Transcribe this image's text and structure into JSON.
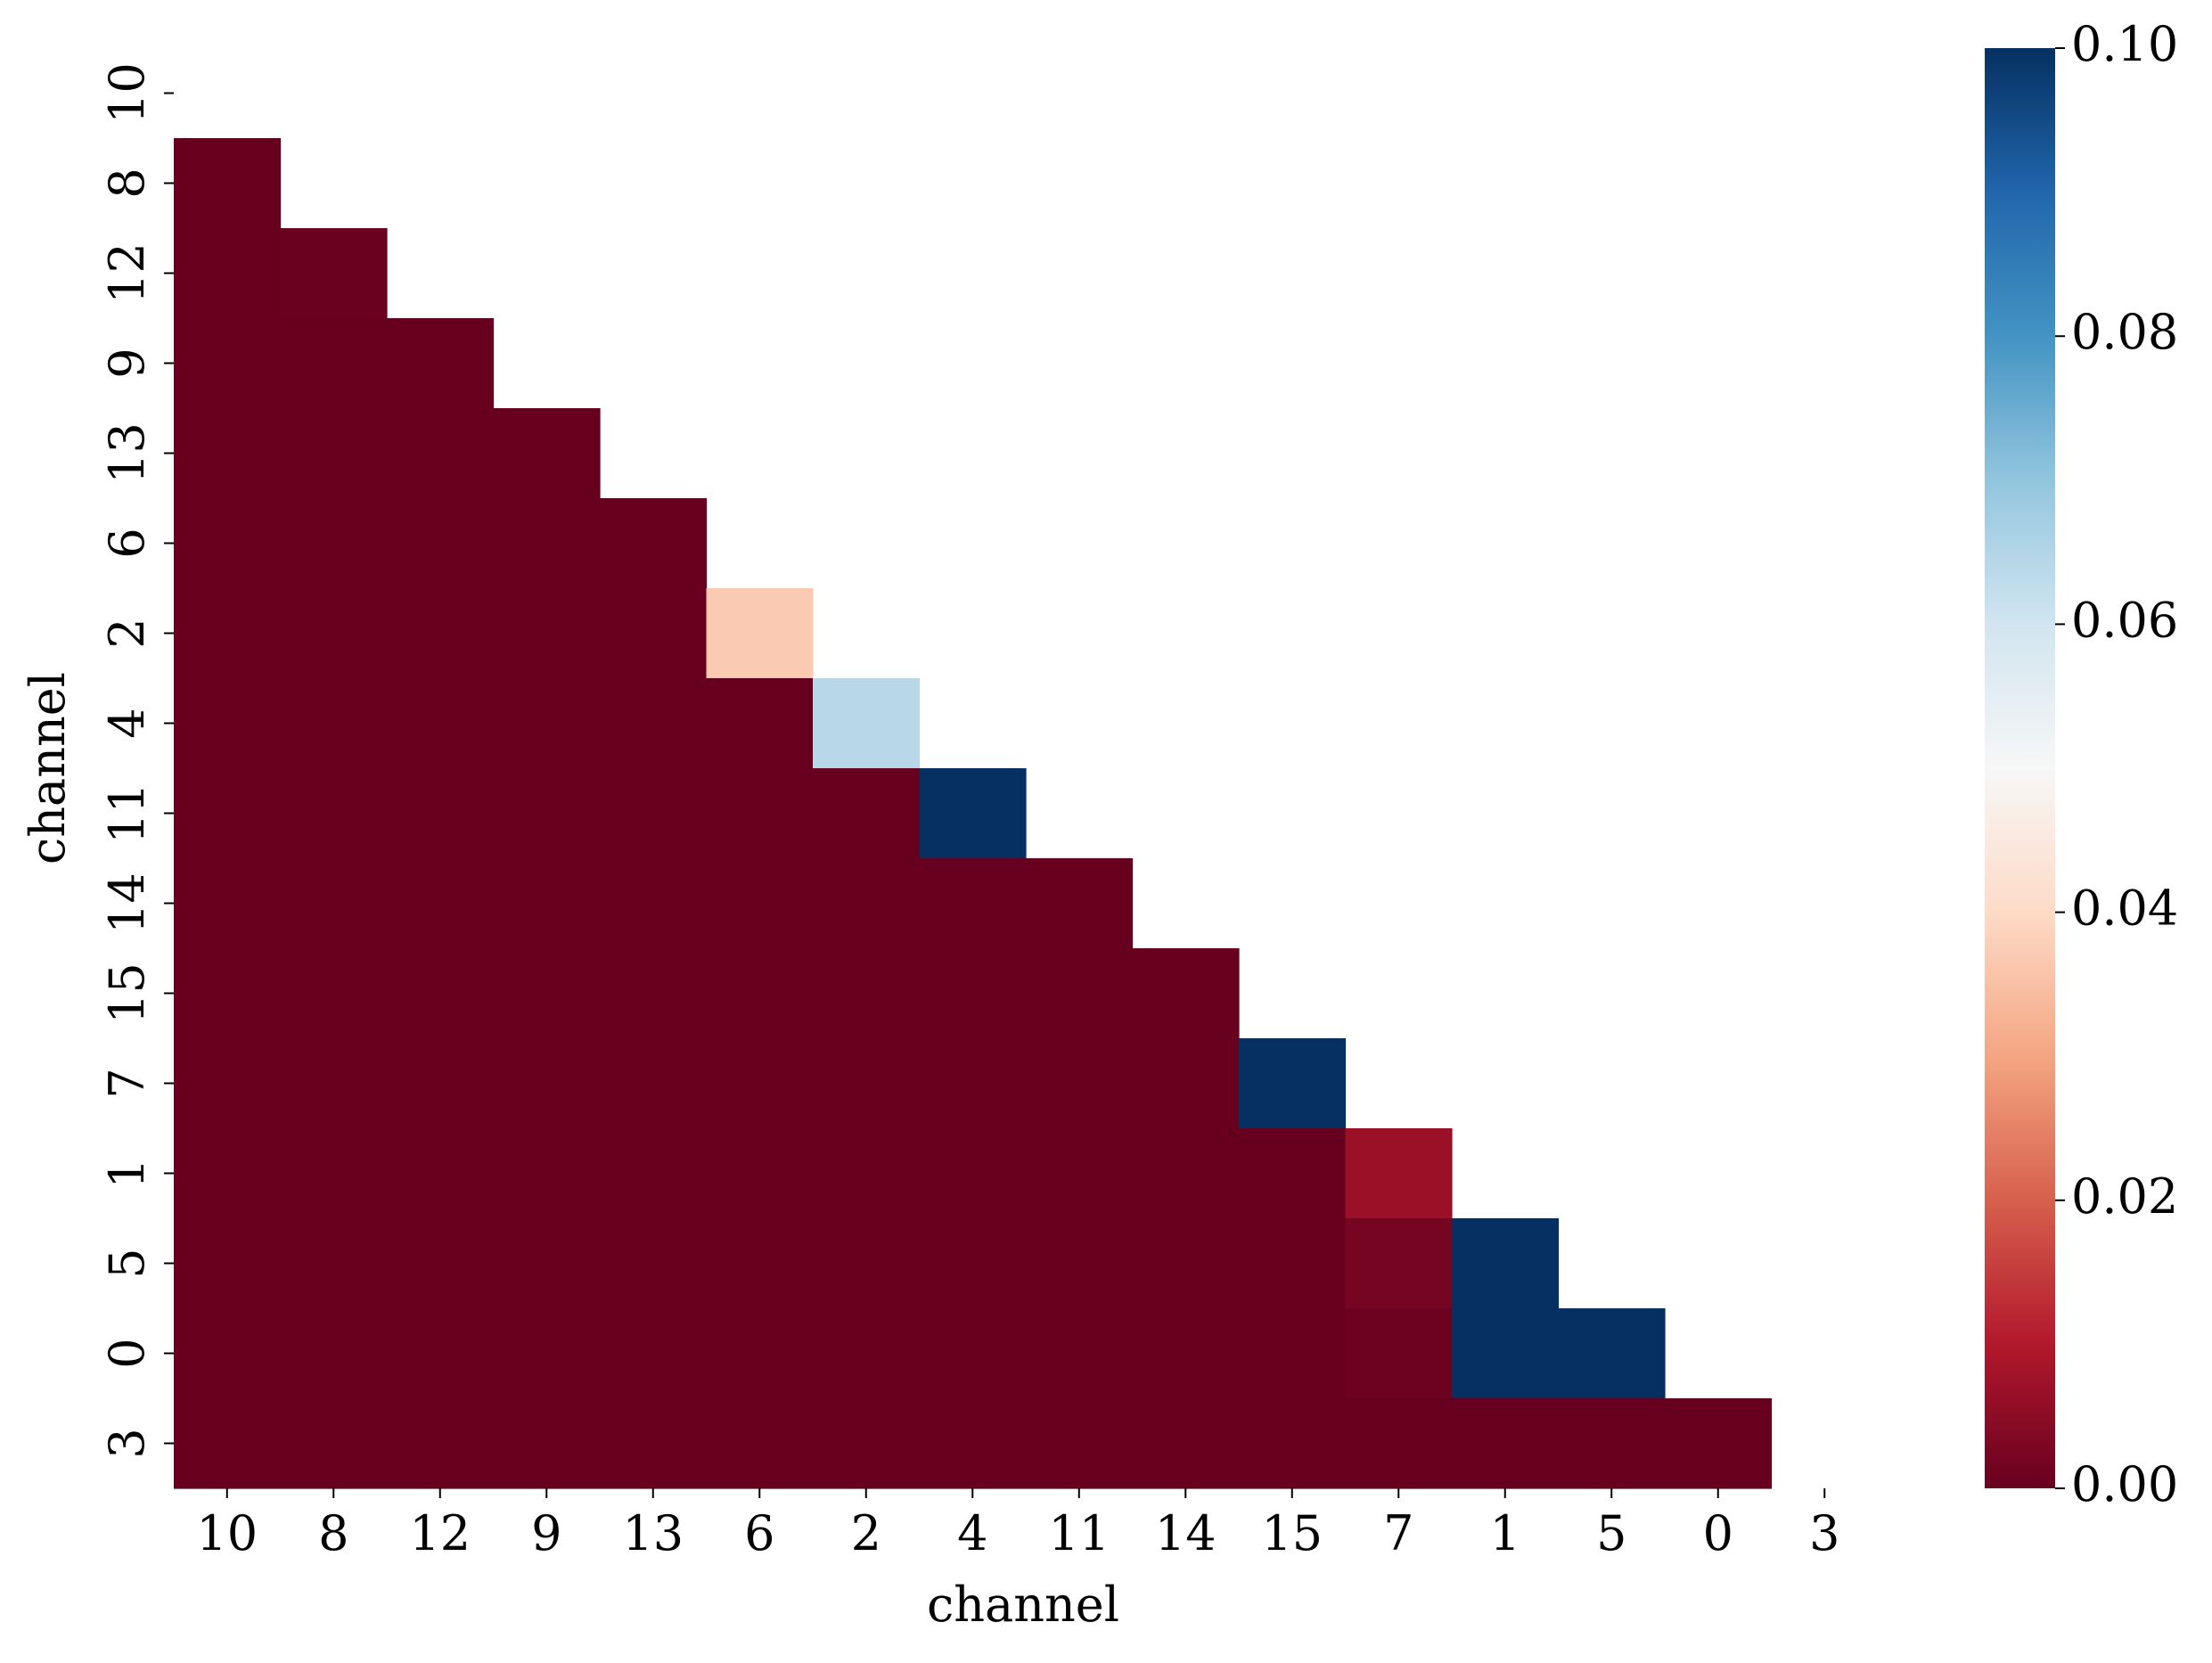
{
  "chart_data": {
    "type": "heatmap",
    "xlabel": "channel",
    "ylabel": "channel",
    "categories": [
      "10",
      "8",
      "12",
      "9",
      "13",
      "6",
      "2",
      "4",
      "11",
      "14",
      "15",
      "7",
      "1",
      "5",
      "0",
      "3"
    ],
    "z": [
      [
        null,
        null,
        null,
        null,
        null,
        null,
        null,
        null,
        null,
        null,
        null,
        null,
        null,
        null,
        null,
        null
      ],
      [
        0,
        null,
        null,
        null,
        null,
        null,
        null,
        null,
        null,
        null,
        null,
        null,
        null,
        null,
        null,
        null
      ],
      [
        0,
        0.0003,
        null,
        null,
        null,
        null,
        null,
        null,
        null,
        null,
        null,
        null,
        null,
        null,
        null,
        null
      ],
      [
        0,
        0,
        0,
        null,
        null,
        null,
        null,
        null,
        null,
        null,
        null,
        null,
        null,
        null,
        null,
        null
      ],
      [
        0,
        0,
        0,
        0,
        null,
        null,
        null,
        null,
        null,
        null,
        null,
        null,
        null,
        null,
        null,
        null
      ],
      [
        0,
        0,
        0,
        0,
        0,
        null,
        null,
        null,
        null,
        null,
        null,
        null,
        null,
        null,
        null,
        null
      ],
      [
        0,
        0,
        0,
        0,
        0,
        0.037,
        null,
        null,
        null,
        null,
        null,
        null,
        null,
        null,
        null,
        null
      ],
      [
        0,
        0,
        0,
        0,
        0,
        0,
        0.064,
        null,
        null,
        null,
        null,
        null,
        null,
        null,
        null,
        null
      ],
      [
        0,
        0,
        0,
        0,
        0,
        0,
        0,
        0.1,
        null,
        null,
        null,
        null,
        null,
        null,
        null,
        null
      ],
      [
        0,
        0,
        0,
        0,
        0,
        0,
        0,
        0,
        0,
        null,
        null,
        null,
        null,
        null,
        null,
        null
      ],
      [
        0,
        0,
        0,
        0,
        0,
        0,
        0,
        0,
        0,
        0,
        null,
        null,
        null,
        null,
        null,
        null
      ],
      [
        0,
        0,
        0,
        0,
        0,
        0,
        0,
        0,
        0,
        0,
        0.1,
        null,
        null,
        null,
        null,
        null
      ],
      [
        0,
        0,
        0,
        0,
        0,
        0,
        0,
        0,
        0,
        0,
        0,
        0.0068,
        null,
        null,
        null,
        null
      ],
      [
        0,
        0,
        0,
        0,
        0,
        0,
        0,
        0,
        0,
        0,
        0,
        0.0019,
        0.1,
        null,
        null,
        null
      ],
      [
        0,
        0,
        0,
        0,
        0,
        0,
        0,
        0,
        0,
        0,
        0,
        0.0007,
        0.1,
        0.1,
        null,
        null
      ],
      [
        0,
        0,
        0,
        0,
        0,
        0,
        0,
        0,
        0,
        0,
        0,
        0,
        0,
        0,
        0,
        null
      ]
    ],
    "colorscale": [
      "#67001f",
      "#b2182b",
      "#d6604d",
      "#f4a582",
      "#fddbc7",
      "#f7f7f7",
      "#d1e5f0",
      "#92c5de",
      "#4393c3",
      "#2166ac",
      "#053061"
    ],
    "clim": [
      0,
      0.1
    ],
    "cticks": [
      {
        "value": 0,
        "label": "0.00"
      },
      {
        "value": 0.02,
        "label": "0.02"
      },
      {
        "value": 0.04,
        "label": "0.04"
      },
      {
        "value": 0.06,
        "label": "0.06"
      },
      {
        "value": 0.08,
        "label": "0.08"
      },
      {
        "value": 0.1,
        "label": "0.10"
      }
    ]
  }
}
